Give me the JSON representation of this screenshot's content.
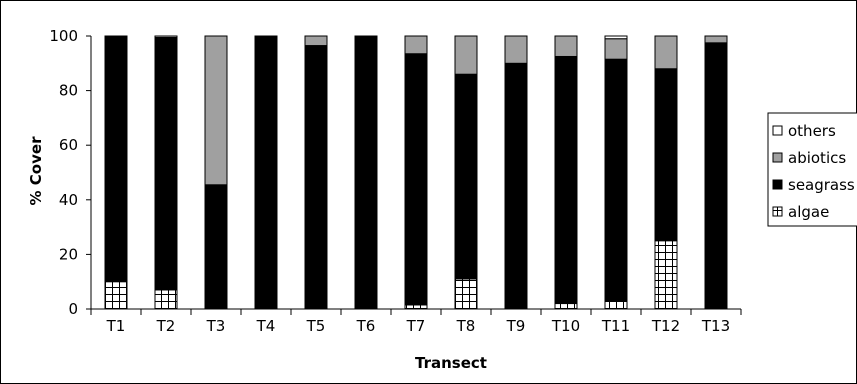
{
  "chart_data": {
    "type": "bar",
    "stacked": true,
    "percent": true,
    "categories": [
      "T1",
      "T2",
      "T3",
      "T4",
      "T5",
      "T6",
      "T7",
      "T8",
      "T9",
      "T10",
      "T11",
      "T12",
      "T13"
    ],
    "series": [
      {
        "name": "algae",
        "color": "#ffffff",
        "pattern": "grid",
        "values": [
          10,
          7,
          0,
          0,
          0,
          0,
          1.5,
          11,
          0,
          2,
          3,
          25,
          0
        ]
      },
      {
        "name": "seagrass",
        "color": "#000000",
        "pattern": "solid",
        "values": [
          90,
          92.5,
          45.5,
          100,
          96.5,
          100,
          92,
          75,
          90,
          90.5,
          88.5,
          63,
          97.5
        ]
      },
      {
        "name": "abiotics",
        "color": "#a0a0a0",
        "pattern": "solid",
        "values": [
          0,
          0,
          54.5,
          0,
          3.5,
          0,
          6.5,
          14,
          10,
          7.5,
          7.5,
          12,
          2.5
        ]
      },
      {
        "name": "others",
        "color": "#ffffff",
        "pattern": "solid",
        "values": [
          0,
          0.5,
          0,
          0,
          0,
          0,
          0,
          0,
          0,
          0,
          1,
          0,
          0
        ]
      }
    ],
    "legend_order": [
      "others",
      "abiotics",
      "seagrass",
      "algae"
    ],
    "xlabel": "Transect",
    "ylabel": "% Cover",
    "ylim": [
      0,
      100
    ],
    "yticks": [
      0,
      20,
      40,
      60,
      80,
      100
    ],
    "grid": false,
    "legend_position": "right"
  }
}
